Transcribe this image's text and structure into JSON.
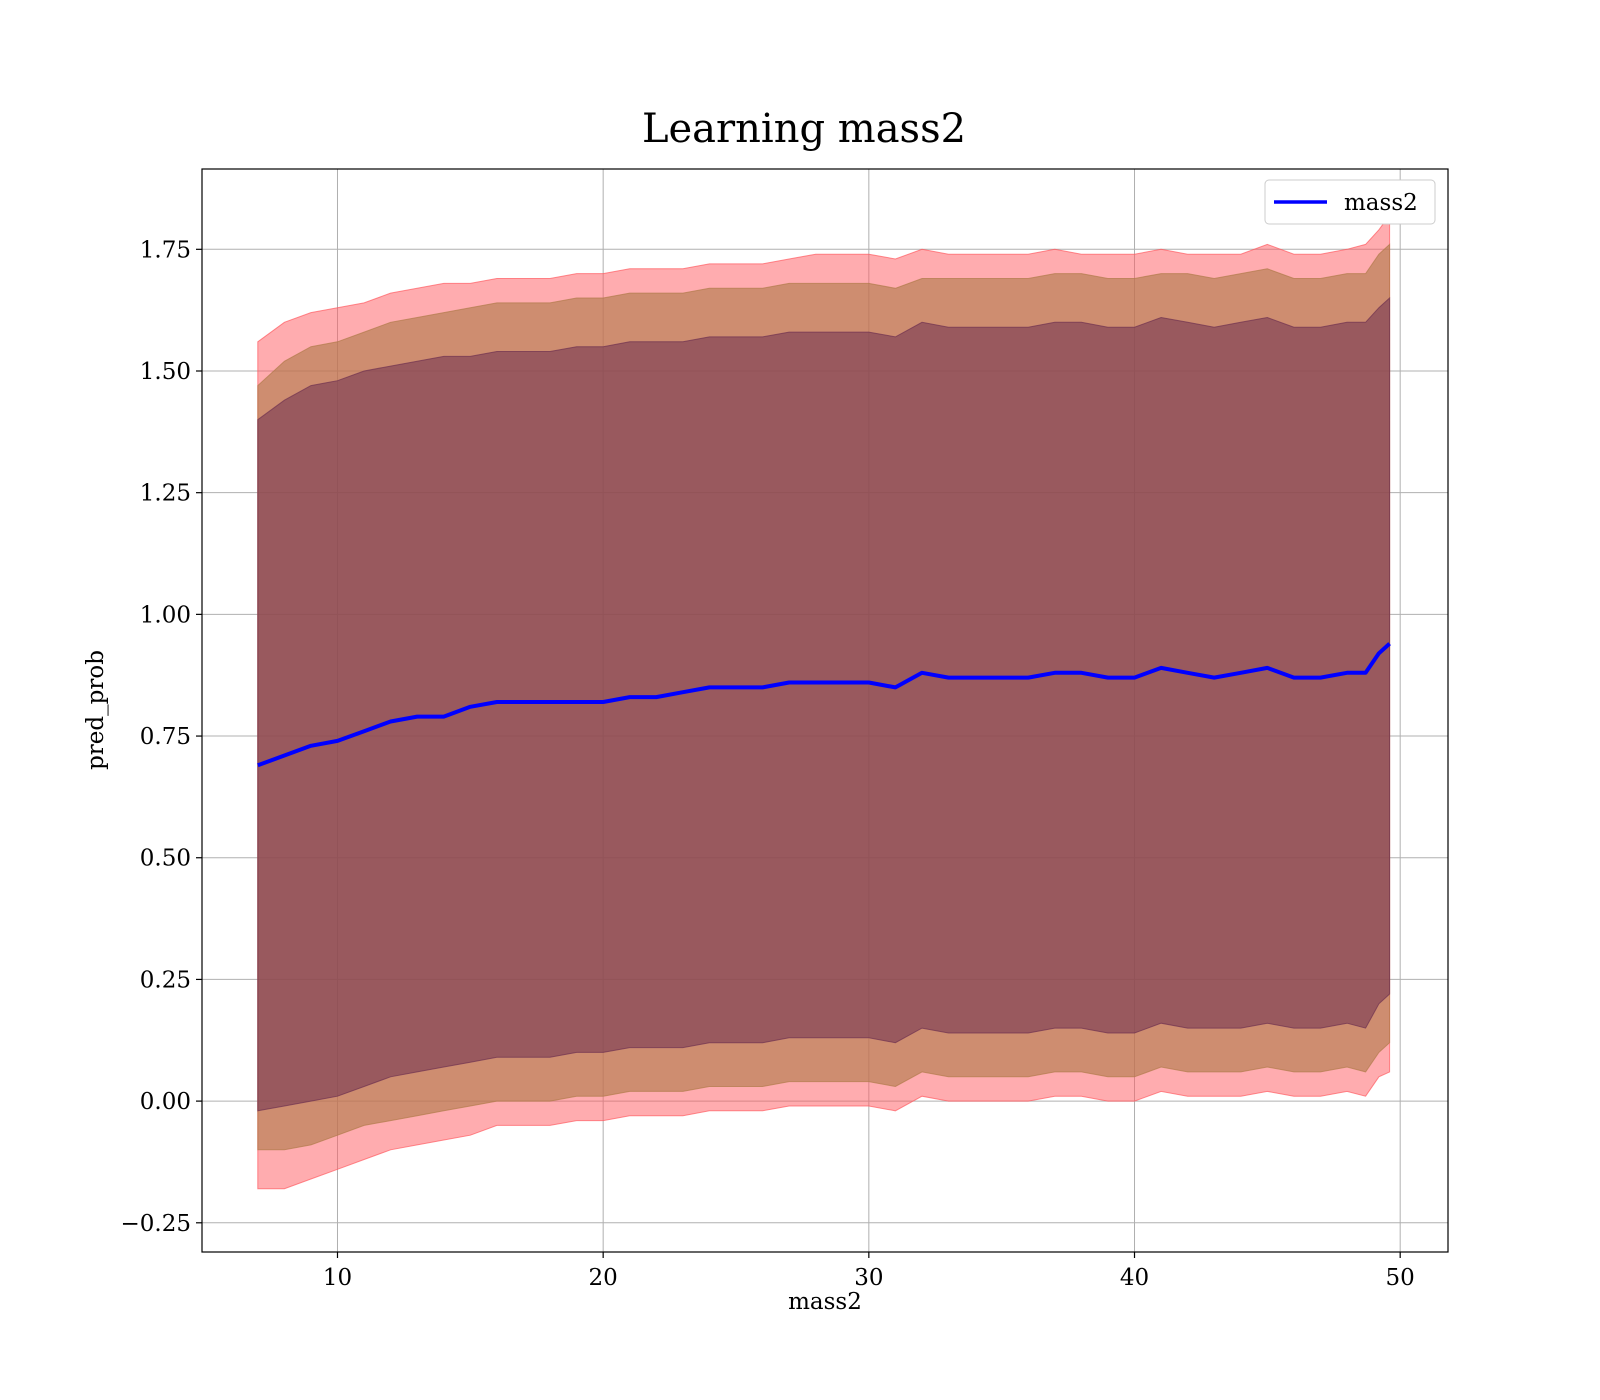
{
  "chart_data": {
    "type": "area",
    "title": "Learning mass2",
    "xlabel": "mass2",
    "ylabel": "pred_prob",
    "xlim": [
      4.9,
      51.8
    ],
    "ylim": [
      -0.31,
      1.915
    ],
    "x_ticks": [
      10,
      20,
      30,
      40,
      50
    ],
    "x_tick_labels": [
      "10",
      "20",
      "30",
      "40",
      "50"
    ],
    "y_ticks": [
      -0.25,
      0.0,
      0.25,
      0.5,
      0.75,
      1.0,
      1.25,
      1.5,
      1.75
    ],
    "y_tick_labels": [
      "−0.25",
      "0.00",
      "0.25",
      "0.50",
      "0.75",
      "1.00",
      "1.25",
      "1.50",
      "1.75"
    ],
    "grid": true,
    "legend": {
      "position": "top-right",
      "entries": [
        "mass2"
      ]
    },
    "colors": {
      "line": "#0000ff",
      "band_outer": "#ff5a5f",
      "band_mid": "#b07a4a",
      "band_inner": "#6e3050"
    },
    "series": [
      {
        "name": "mass2",
        "x": [
          7.0,
          8.0,
          9.0,
          10.0,
          11.0,
          12.0,
          13.0,
          14.0,
          15.0,
          16.0,
          17.0,
          18.0,
          19.0,
          20.0,
          21.0,
          22.0,
          23.0,
          24.0,
          25.0,
          26.0,
          27.0,
          28.0,
          29.0,
          30.0,
          31.0,
          32.0,
          33.0,
          34.0,
          35.0,
          36.0,
          37.0,
          38.0,
          39.0,
          40.0,
          41.0,
          42.0,
          43.0,
          44.0,
          45.0,
          46.0,
          47.0,
          48.0,
          48.7,
          49.2,
          49.6
        ],
        "y": [
          0.69,
          0.71,
          0.73,
          0.74,
          0.76,
          0.78,
          0.79,
          0.79,
          0.81,
          0.82,
          0.82,
          0.82,
          0.82,
          0.82,
          0.83,
          0.83,
          0.84,
          0.85,
          0.85,
          0.85,
          0.86,
          0.86,
          0.86,
          0.86,
          0.85,
          0.88,
          0.87,
          0.87,
          0.87,
          0.87,
          0.88,
          0.88,
          0.87,
          0.87,
          0.89,
          0.88,
          0.87,
          0.88,
          0.89,
          0.87,
          0.87,
          0.88,
          0.88,
          0.92,
          0.94
        ]
      }
    ],
    "bands": [
      {
        "level": "outer",
        "upper": [
          1.56,
          1.6,
          1.62,
          1.63,
          1.64,
          1.66,
          1.67,
          1.68,
          1.68,
          1.69,
          1.69,
          1.69,
          1.7,
          1.7,
          1.71,
          1.71,
          1.71,
          1.72,
          1.72,
          1.72,
          1.73,
          1.74,
          1.74,
          1.74,
          1.73,
          1.75,
          1.74,
          1.74,
          1.74,
          1.74,
          1.75,
          1.74,
          1.74,
          1.74,
          1.75,
          1.74,
          1.74,
          1.74,
          1.76,
          1.74,
          1.74,
          1.75,
          1.76,
          1.79,
          1.82
        ],
        "lower": [
          -0.18,
          -0.18,
          -0.16,
          -0.14,
          -0.12,
          -0.1,
          -0.09,
          -0.08,
          -0.07,
          -0.05,
          -0.05,
          -0.05,
          -0.04,
          -0.04,
          -0.03,
          -0.03,
          -0.03,
          -0.02,
          -0.02,
          -0.02,
          -0.01,
          -0.01,
          -0.01,
          -0.01,
          -0.02,
          0.01,
          0.0,
          0.0,
          0.0,
          0.0,
          0.01,
          0.01,
          0.0,
          0.0,
          0.02,
          0.01,
          0.01,
          0.01,
          0.02,
          0.01,
          0.01,
          0.02,
          0.01,
          0.05,
          0.06
        ]
      },
      {
        "level": "mid",
        "upper": [
          1.47,
          1.52,
          1.55,
          1.56,
          1.58,
          1.6,
          1.61,
          1.62,
          1.63,
          1.64,
          1.64,
          1.64,
          1.65,
          1.65,
          1.66,
          1.66,
          1.66,
          1.67,
          1.67,
          1.67,
          1.68,
          1.68,
          1.68,
          1.68,
          1.67,
          1.69,
          1.69,
          1.69,
          1.69,
          1.69,
          1.7,
          1.7,
          1.69,
          1.69,
          1.7,
          1.7,
          1.69,
          1.7,
          1.71,
          1.69,
          1.69,
          1.7,
          1.7,
          1.74,
          1.76
        ],
        "lower": [
          -0.1,
          -0.1,
          -0.09,
          -0.07,
          -0.05,
          -0.04,
          -0.03,
          -0.02,
          -0.01,
          0.0,
          0.0,
          0.0,
          0.01,
          0.01,
          0.02,
          0.02,
          0.02,
          0.03,
          0.03,
          0.03,
          0.04,
          0.04,
          0.04,
          0.04,
          0.03,
          0.06,
          0.05,
          0.05,
          0.05,
          0.05,
          0.06,
          0.06,
          0.05,
          0.05,
          0.07,
          0.06,
          0.06,
          0.06,
          0.07,
          0.06,
          0.06,
          0.07,
          0.06,
          0.1,
          0.12
        ]
      },
      {
        "level": "inner",
        "upper": [
          1.4,
          1.44,
          1.47,
          1.48,
          1.5,
          1.51,
          1.52,
          1.53,
          1.53,
          1.54,
          1.54,
          1.54,
          1.55,
          1.55,
          1.56,
          1.56,
          1.56,
          1.57,
          1.57,
          1.57,
          1.58,
          1.58,
          1.58,
          1.58,
          1.57,
          1.6,
          1.59,
          1.59,
          1.59,
          1.59,
          1.6,
          1.6,
          1.59,
          1.59,
          1.61,
          1.6,
          1.59,
          1.6,
          1.61,
          1.59,
          1.59,
          1.6,
          1.6,
          1.63,
          1.65
        ],
        "lower": [
          -0.02,
          -0.01,
          0.0,
          0.01,
          0.03,
          0.05,
          0.06,
          0.07,
          0.08,
          0.09,
          0.09,
          0.09,
          0.1,
          0.1,
          0.11,
          0.11,
          0.11,
          0.12,
          0.12,
          0.12,
          0.13,
          0.13,
          0.13,
          0.13,
          0.12,
          0.15,
          0.14,
          0.14,
          0.14,
          0.14,
          0.15,
          0.15,
          0.14,
          0.14,
          0.16,
          0.15,
          0.15,
          0.15,
          0.16,
          0.15,
          0.15,
          0.16,
          0.15,
          0.2,
          0.22
        ]
      }
    ]
  }
}
